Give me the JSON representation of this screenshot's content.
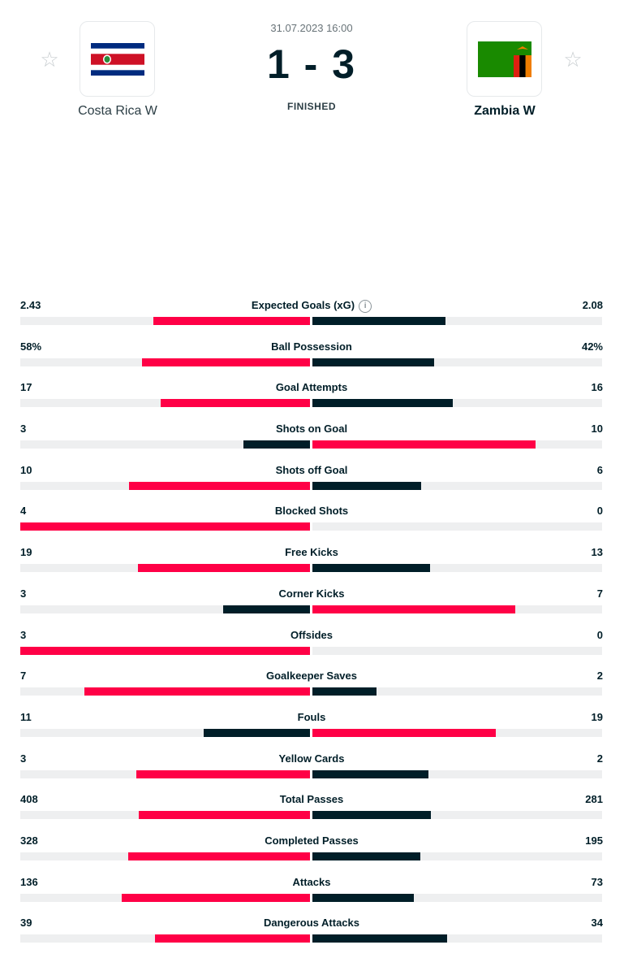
{
  "match": {
    "date": "31.07.2023 16:00",
    "score": "1 - 3",
    "status": "FINISHED",
    "home": {
      "name": "Costa Rica W",
      "flag": "costa-rica-flag"
    },
    "away": {
      "name": "Zambia W",
      "flag": "zambia-flag"
    }
  },
  "colors": {
    "accent": "#ff0046",
    "dark": "#001e28",
    "track": "#eeeff0"
  },
  "stats": [
    {
      "label": "Expected Goals (xG)",
      "home": "2.43",
      "away": "2.08",
      "home_share": 0.54,
      "away_share": 0.46,
      "info": "i"
    },
    {
      "label": "Ball Possession",
      "home": "58%",
      "away": "42%",
      "home_share": 0.58,
      "away_share": 0.42
    },
    {
      "label": "Goal Attempts",
      "home": "17",
      "away": "16",
      "home_share": 0.515,
      "away_share": 0.485
    },
    {
      "label": "Shots on Goal",
      "home": "3",
      "away": "10",
      "home_share": 0.23,
      "away_share": 0.77
    },
    {
      "label": "Shots off Goal",
      "home": "10",
      "away": "6",
      "home_share": 0.625,
      "away_share": 0.375
    },
    {
      "label": "Blocked Shots",
      "home": "4",
      "away": "0",
      "home_share": 1.0,
      "away_share": 0.0
    },
    {
      "label": "Free Kicks",
      "home": "19",
      "away": "13",
      "home_share": 0.594,
      "away_share": 0.406
    },
    {
      "label": "Corner Kicks",
      "home": "3",
      "away": "7",
      "home_share": 0.3,
      "away_share": 0.7
    },
    {
      "label": "Offsides",
      "home": "3",
      "away": "0",
      "home_share": 1.0,
      "away_share": 0.0
    },
    {
      "label": "Goalkeeper Saves",
      "home": "7",
      "away": "2",
      "home_share": 0.778,
      "away_share": 0.222
    },
    {
      "label": "Fouls",
      "home": "11",
      "away": "19",
      "home_share": 0.367,
      "away_share": 0.633
    },
    {
      "label": "Yellow Cards",
      "home": "3",
      "away": "2",
      "home_share": 0.6,
      "away_share": 0.4
    },
    {
      "label": "Total Passes",
      "home": "408",
      "away": "281",
      "home_share": 0.592,
      "away_share": 0.408
    },
    {
      "label": "Completed Passes",
      "home": "328",
      "away": "195",
      "home_share": 0.627,
      "away_share": 0.373
    },
    {
      "label": "Attacks",
      "home": "136",
      "away": "73",
      "home_share": 0.651,
      "away_share": 0.349
    },
    {
      "label": "Dangerous Attacks",
      "home": "39",
      "away": "34",
      "home_share": 0.534,
      "away_share": 0.466
    }
  ]
}
